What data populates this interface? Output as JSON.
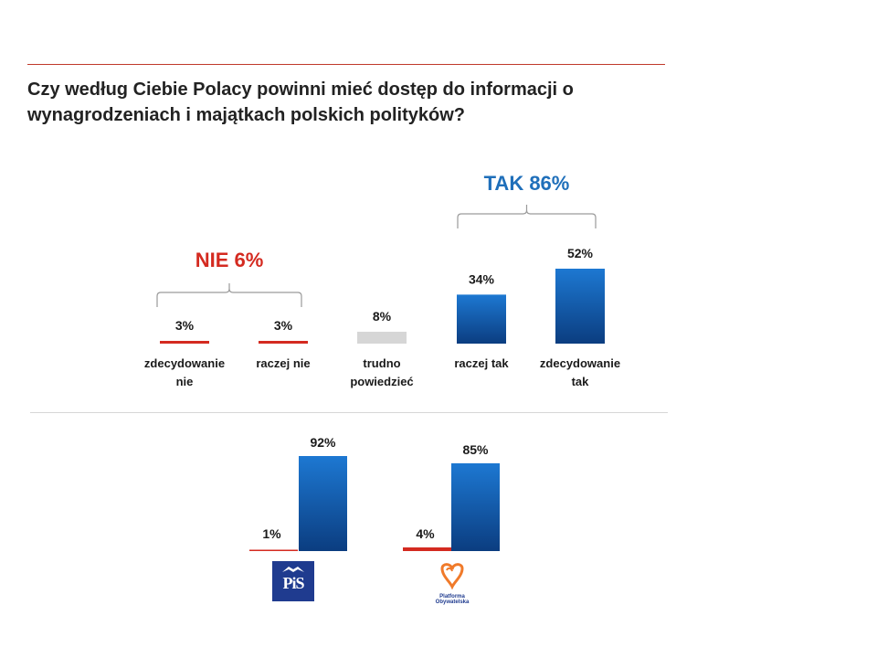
{
  "title_lines": [
    "Czy według Ciebie Polacy powinni mieć dostęp do informacji o",
    "wynagrodzeniach i majątkach polskich polityków?"
  ],
  "colors": {
    "red": "#d42a20",
    "blue_top": "#1d78d2",
    "blue_bottom": "#0b3d80",
    "gray": "#d6d6d6",
    "tak_text": "#1f6fba",
    "nie_text": "#d42a20"
  },
  "chart_data": [
    {
      "type": "bar",
      "categories": [
        [
          "zdecydowanie",
          "nie"
        ],
        [
          "raczej nie"
        ],
        [
          "trudno",
          "powiedzieć"
        ],
        [
          "raczej tak"
        ],
        [
          "zdecydowanie",
          "tak"
        ]
      ],
      "values": [
        3,
        3,
        8,
        34,
        52
      ],
      "value_labels": [
        "3%",
        "3%",
        "8%",
        "34%",
        "52%"
      ],
      "bar_colors": [
        "red",
        "red",
        "gray",
        "blue",
        "blue"
      ],
      "groups": [
        {
          "label": "NIE 6%",
          "color": "nie_text",
          "from": 0,
          "to": 1
        },
        {
          "label": "TAK 86%",
          "color": "tak_text",
          "from": 3,
          "to": 4
        }
      ],
      "ylim": [
        0,
        52
      ]
    },
    {
      "type": "bar",
      "categories": [
        "PiS",
        "Platforma Obywatelska"
      ],
      "series": [
        {
          "values": [
            1,
            4
          ],
          "value_labels": [
            "1%",
            "4%"
          ],
          "color": "red"
        },
        {
          "values": [
            92,
            85
          ],
          "value_labels": [
            "92%",
            "85%"
          ],
          "color": "blue"
        }
      ],
      "ylim": [
        0,
        92
      ]
    }
  ],
  "logos": {
    "pis_text": "PiS",
    "po_text_lines": [
      "Platforma",
      "Obywatelska"
    ]
  }
}
